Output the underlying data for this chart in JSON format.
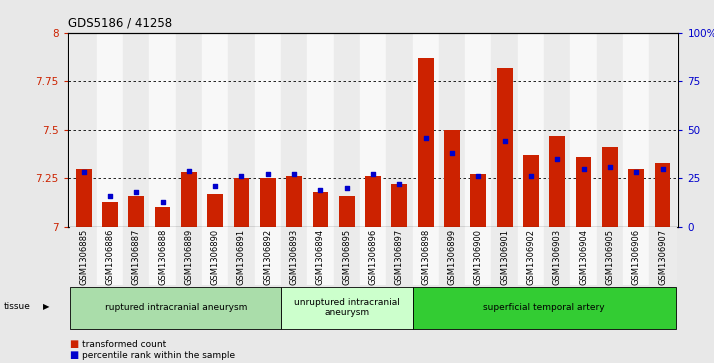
{
  "title": "GDS5186 / 41258",
  "samples": [
    "GSM1306885",
    "GSM1306886",
    "GSM1306887",
    "GSM1306888",
    "GSM1306889",
    "GSM1306890",
    "GSM1306891",
    "GSM1306892",
    "GSM1306893",
    "GSM1306894",
    "GSM1306895",
    "GSM1306896",
    "GSM1306897",
    "GSM1306898",
    "GSM1306899",
    "GSM1306900",
    "GSM1306901",
    "GSM1306902",
    "GSM1306903",
    "GSM1306904",
    "GSM1306905",
    "GSM1306906",
    "GSM1306907"
  ],
  "transformed_count": [
    7.3,
    7.13,
    7.16,
    7.1,
    7.28,
    7.17,
    7.25,
    7.25,
    7.26,
    7.18,
    7.16,
    7.26,
    7.22,
    7.87,
    7.5,
    7.27,
    7.82,
    7.37,
    7.47,
    7.36,
    7.41,
    7.3,
    7.33
  ],
  "percentile_rank": [
    28,
    16,
    18,
    13,
    29,
    21,
    26,
    27,
    27,
    19,
    20,
    27,
    22,
    46,
    38,
    26,
    44,
    26,
    35,
    30,
    31,
    28,
    30
  ],
  "ylim_left": [
    7.0,
    8.0
  ],
  "ylim_right": [
    0,
    100
  ],
  "yticks_left": [
    7.0,
    7.25,
    7.5,
    7.75,
    8.0
  ],
  "ytick_labels_left": [
    "7",
    "7.25",
    "7.5",
    "7.75",
    "8"
  ],
  "yticks_right": [
    0,
    25,
    50,
    75,
    100
  ],
  "ytick_labels_right": [
    "0",
    "25",
    "50",
    "75",
    "100%"
  ],
  "bar_color": "#cc2200",
  "dot_color": "#0000cc",
  "bg_color": "#e8e8e8",
  "plot_bg": "#ffffff",
  "groups": [
    {
      "label": "ruptured intracranial aneurysm",
      "start": 0,
      "end": 8,
      "color": "#aaddaa"
    },
    {
      "label": "unruptured intracranial\naneurysm",
      "start": 8,
      "end": 13,
      "color": "#ccffcc"
    },
    {
      "label": "superficial temporal artery",
      "start": 13,
      "end": 23,
      "color": "#33cc33"
    }
  ],
  "tissue_label": "tissue",
  "legend": [
    {
      "label": "transformed count",
      "color": "#cc2200"
    },
    {
      "label": "percentile rank within the sample",
      "color": "#0000cc"
    }
  ]
}
